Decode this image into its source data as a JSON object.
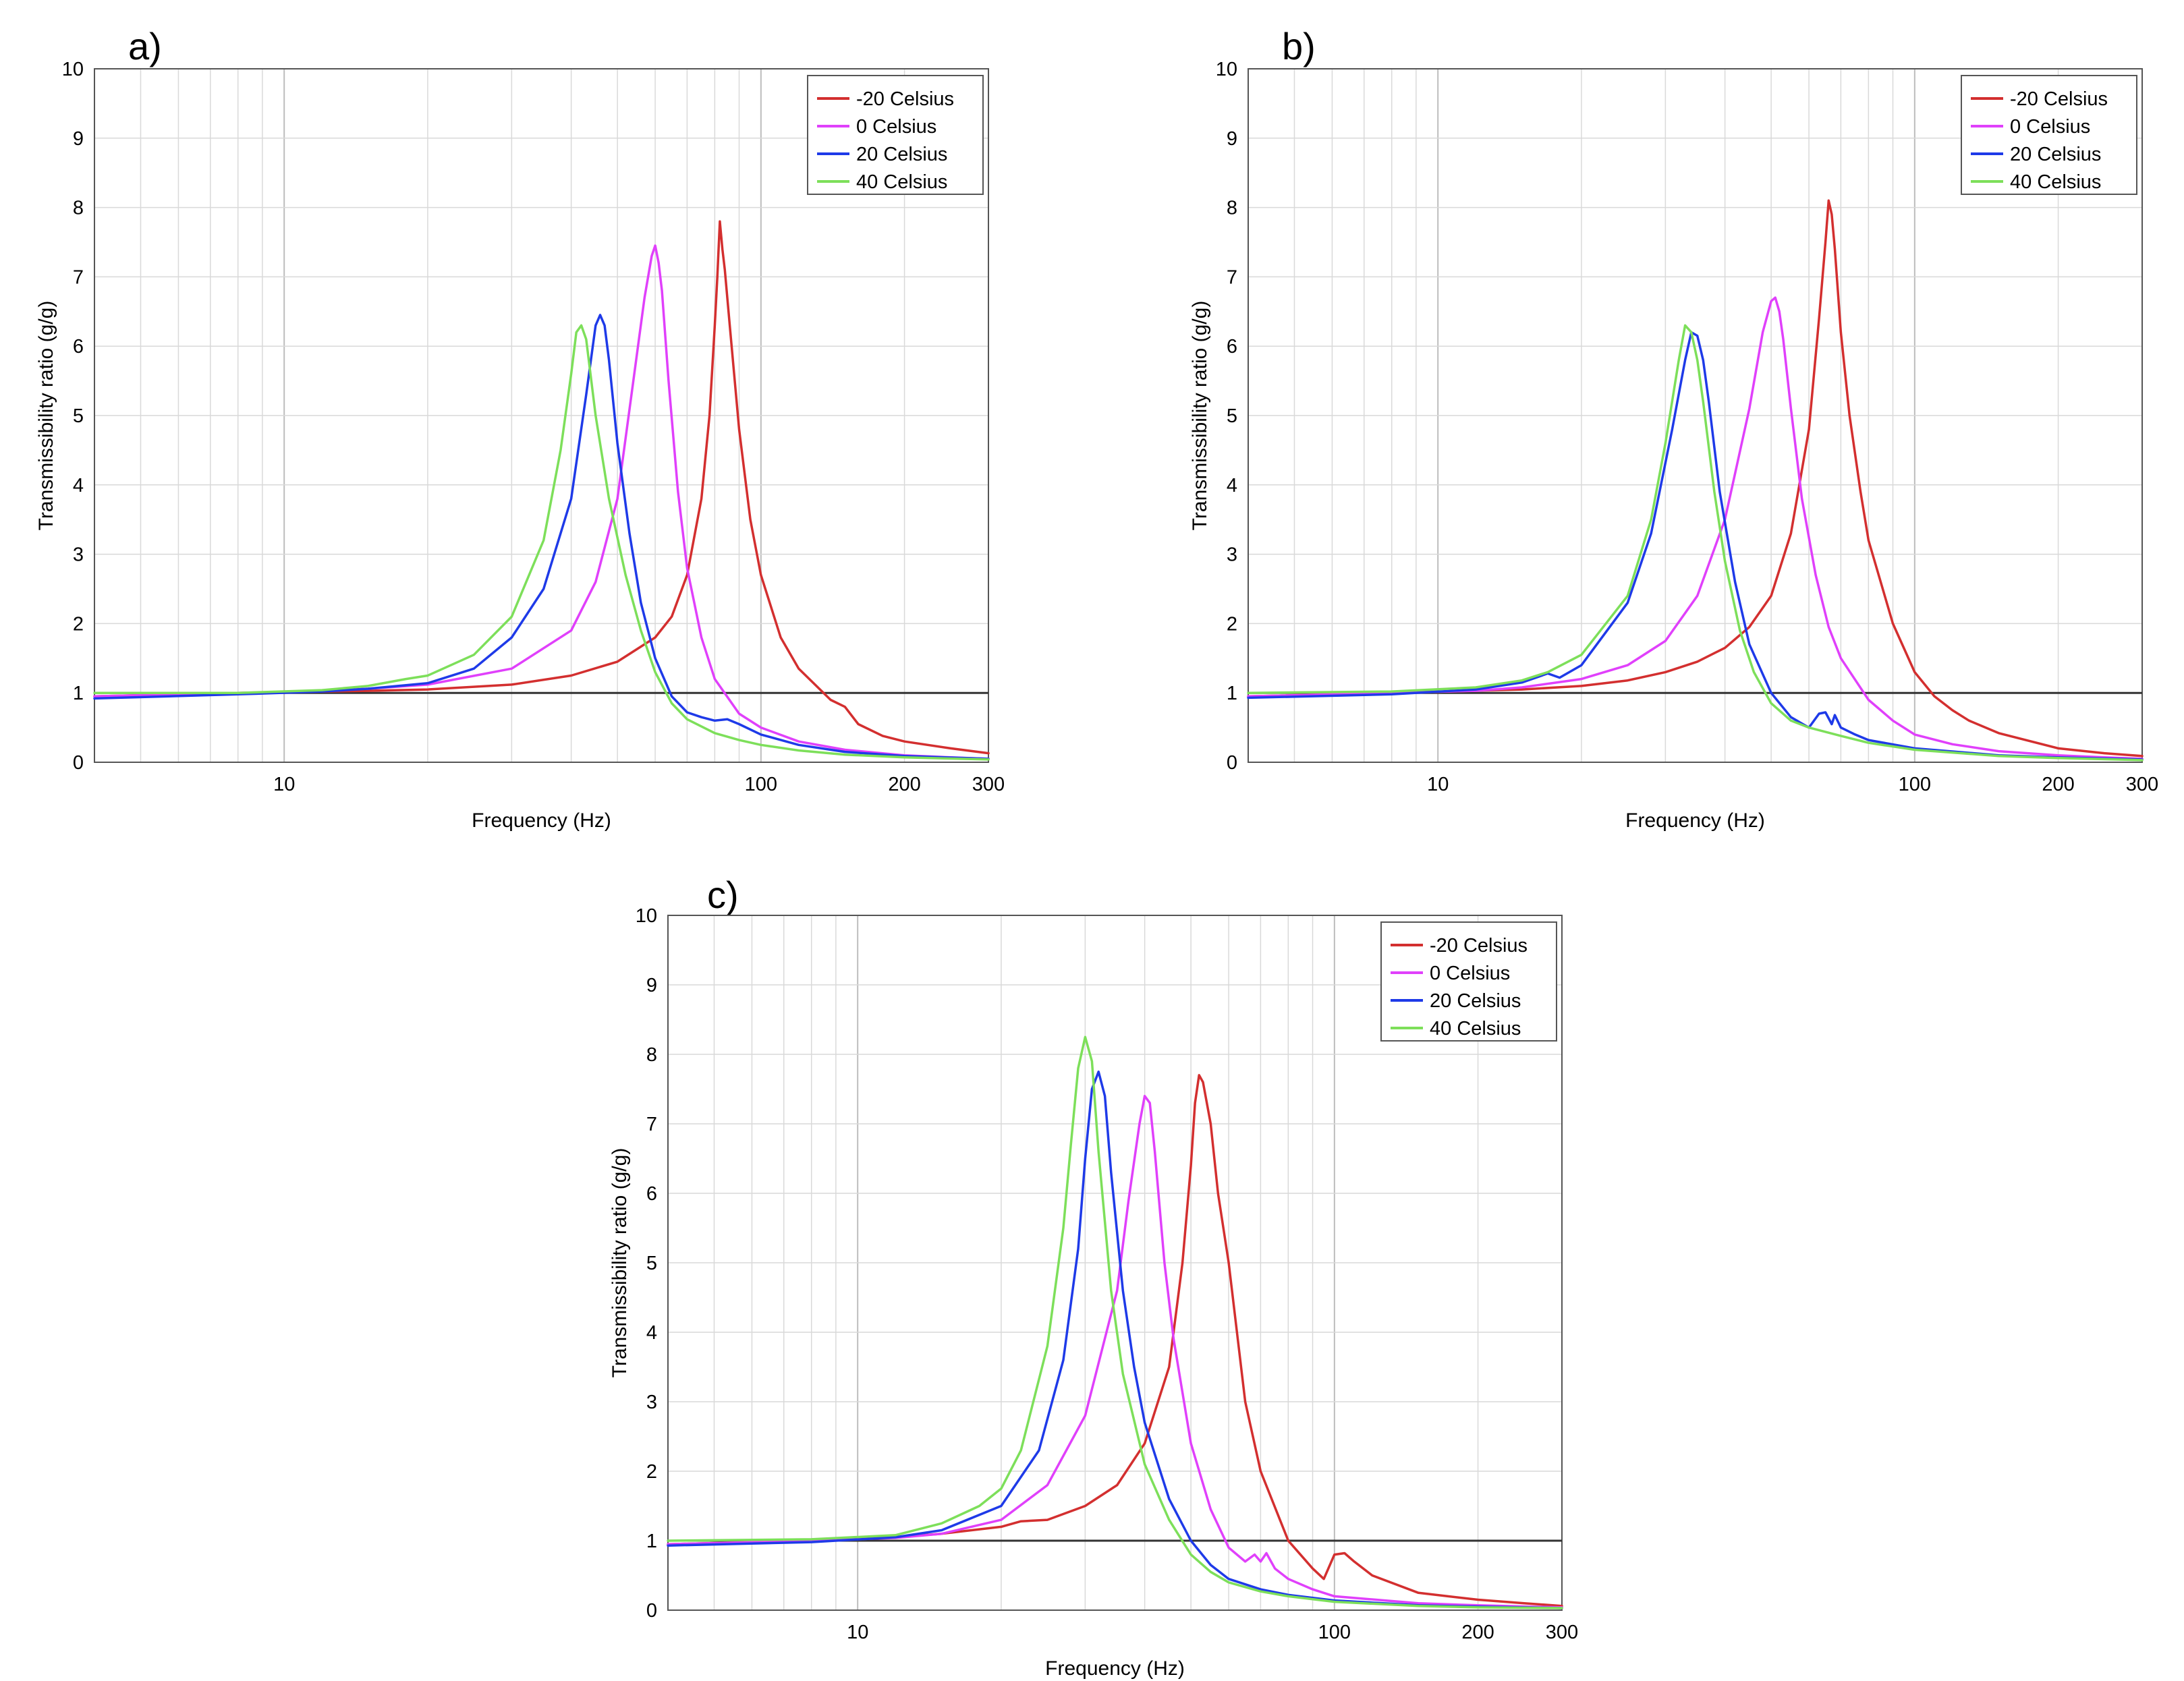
{
  "chart_data": [
    {
      "panel_label": "a)",
      "type": "line",
      "xlabel": "Frequency (Hz)",
      "ylabel": "Transmissibility ratio (g/g)",
      "xscale": "log",
      "xlim": [
        4,
        300
      ],
      "ylim": [
        0,
        10
      ],
      "xticks": [
        10,
        100,
        200,
        300
      ],
      "xtick_labels": [
        "10",
        "100",
        "200",
        "300"
      ],
      "yticks": [
        0,
        1,
        2,
        3,
        4,
        5,
        6,
        7,
        8,
        9,
        10
      ],
      "ytick_labels": [
        "0",
        "1",
        "2",
        "3",
        "4",
        "5",
        "6",
        "7",
        "8",
        "9",
        "10"
      ],
      "grid": true,
      "legend_position": "top-right",
      "reference_line_y": 1,
      "series": [
        {
          "name": "-20 Celsius",
          "color": "#d32f2f",
          "x": [
            4,
            8,
            15,
            20,
            30,
            40,
            50,
            60,
            65,
            70,
            75,
            78,
            80,
            81,
            82,
            83,
            84,
            86,
            90,
            95,
            100,
            110,
            120,
            140,
            150,
            160,
            180,
            200,
            250,
            300
          ],
          "y": [
            0.95,
            1.0,
            1.03,
            1.05,
            1.12,
            1.25,
            1.45,
            1.8,
            2.1,
            2.7,
            3.8,
            5.0,
            6.3,
            7.0,
            7.8,
            7.4,
            7.1,
            6.3,
            4.8,
            3.5,
            2.7,
            1.8,
            1.35,
            0.9,
            0.8,
            0.55,
            0.38,
            0.3,
            0.2,
            0.13
          ]
        },
        {
          "name": "0 Celsius",
          "color": "#e040fb",
          "x": [
            4,
            8,
            12,
            15,
            20,
            30,
            40,
            45,
            50,
            54,
            57,
            59,
            60,
            61,
            62,
            64,
            67,
            70,
            75,
            80,
            90,
            100,
            120,
            150,
            200,
            250,
            300
          ],
          "y": [
            0.95,
            1.0,
            1.03,
            1.06,
            1.12,
            1.35,
            1.9,
            2.6,
            3.8,
            5.5,
            6.7,
            7.3,
            7.45,
            7.2,
            6.8,
            5.5,
            3.9,
            2.8,
            1.8,
            1.2,
            0.7,
            0.5,
            0.3,
            0.18,
            0.1,
            0.07,
            0.05
          ]
        },
        {
          "name": "20 Celsius",
          "color": "#1e3ae8",
          "x": [
            4,
            8,
            12,
            15,
            20,
            25,
            30,
            35,
            40,
            43,
            45,
            46,
            47,
            48,
            50,
            53,
            56,
            60,
            65,
            70,
            75,
            80,
            85,
            90,
            100,
            120,
            150,
            200,
            300
          ],
          "y": [
            0.92,
            0.98,
            1.02,
            1.06,
            1.14,
            1.35,
            1.8,
            2.5,
            3.8,
            5.3,
            6.3,
            6.45,
            6.3,
            5.8,
            4.6,
            3.3,
            2.3,
            1.5,
            0.95,
            0.72,
            0.65,
            0.6,
            0.62,
            0.55,
            0.4,
            0.25,
            0.15,
            0.09,
            0.05
          ]
        },
        {
          "name": "40 Celsius",
          "color": "#7ddf5a",
          "x": [
            4,
            8,
            12,
            15,
            18,
            20,
            25,
            30,
            35,
            38,
            40,
            41,
            42,
            43,
            45,
            48,
            52,
            56,
            60,
            65,
            70,
            80,
            90,
            100,
            120,
            150,
            200,
            300
          ],
          "y": [
            1.0,
            1.0,
            1.04,
            1.1,
            1.2,
            1.25,
            1.55,
            2.1,
            3.2,
            4.5,
            5.6,
            6.2,
            6.3,
            6.1,
            5.0,
            3.8,
            2.7,
            1.9,
            1.3,
            0.85,
            0.62,
            0.42,
            0.32,
            0.25,
            0.17,
            0.11,
            0.07,
            0.04
          ]
        }
      ]
    },
    {
      "panel_label": "b)",
      "type": "line",
      "xlabel": "Frequency (Hz)",
      "ylabel": "Transmissibility ratio (g/g)",
      "xscale": "log",
      "xlim": [
        4,
        300
      ],
      "ylim": [
        0,
        10
      ],
      "xticks": [
        10,
        100,
        200,
        300
      ],
      "xtick_labels": [
        "10",
        "100",
        "200",
        "300"
      ],
      "yticks": [
        0,
        1,
        2,
        3,
        4,
        5,
        6,
        7,
        8,
        9,
        10
      ],
      "ytick_labels": [
        "0",
        "1",
        "2",
        "3",
        "4",
        "5",
        "6",
        "7",
        "8",
        "9",
        "10"
      ],
      "grid": true,
      "legend_position": "top-right",
      "reference_line_y": 1,
      "series": [
        {
          "name": "-20 Celsius",
          "color": "#d32f2f",
          "x": [
            4,
            8,
            15,
            20,
            25,
            30,
            35,
            40,
            45,
            50,
            55,
            60,
            63,
            65,
            66,
            67,
            68,
            70,
            73,
            77,
            80,
            90,
            100,
            110,
            120,
            130,
            150,
            200,
            250,
            300
          ],
          "y": [
            0.95,
            1.0,
            1.05,
            1.1,
            1.18,
            1.3,
            1.45,
            1.65,
            1.95,
            2.4,
            3.3,
            4.8,
            6.4,
            7.5,
            8.1,
            7.9,
            7.4,
            6.2,
            5.0,
            3.9,
            3.2,
            2.0,
            1.3,
            0.95,
            0.75,
            0.6,
            0.42,
            0.2,
            0.13,
            0.09
          ]
        },
        {
          "name": "0 Celsius",
          "color": "#e040fb",
          "x": [
            4,
            8,
            12,
            15,
            20,
            25,
            30,
            35,
            40,
            45,
            48,
            50,
            51,
            52,
            53,
            55,
            58,
            62,
            66,
            70,
            80,
            90,
            100,
            120,
            150,
            200,
            250,
            300
          ],
          "y": [
            0.95,
            1.0,
            1.03,
            1.08,
            1.2,
            1.4,
            1.75,
            2.4,
            3.5,
            5.1,
            6.2,
            6.65,
            6.7,
            6.5,
            6.1,
            5.1,
            3.8,
            2.7,
            1.95,
            1.5,
            0.9,
            0.6,
            0.4,
            0.26,
            0.16,
            0.1,
            0.07,
            0.05
          ]
        },
        {
          "name": "20 Celsius",
          "color": "#1e3ae8",
          "x": [
            4,
            8,
            12,
            15,
            17,
            18,
            20,
            25,
            28,
            31,
            33,
            34,
            35,
            36,
            37,
            39,
            42,
            45,
            50,
            55,
            60,
            63,
            65,
            67,
            68,
            70,
            75,
            80,
            100,
            150,
            200,
            300
          ],
          "y": [
            0.93,
            0.98,
            1.05,
            1.15,
            1.28,
            1.22,
            1.4,
            2.3,
            3.3,
            4.8,
            5.8,
            6.2,
            6.15,
            5.8,
            5.2,
            3.9,
            2.6,
            1.7,
            1.0,
            0.65,
            0.5,
            0.7,
            0.72,
            0.55,
            0.68,
            0.5,
            0.4,
            0.32,
            0.2,
            0.1,
            0.07,
            0.04
          ]
        },
        {
          "name": "40 Celsius",
          "color": "#7ddf5a",
          "x": [
            4,
            8,
            12,
            15,
            17,
            20,
            25,
            28,
            30,
            32,
            33,
            34,
            35,
            36,
            38,
            40,
            43,
            46,
            50,
            55,
            60,
            70,
            80,
            100,
            150,
            200,
            300
          ],
          "y": [
            1.0,
            1.02,
            1.08,
            1.18,
            1.3,
            1.55,
            2.4,
            3.5,
            4.6,
            5.8,
            6.3,
            6.2,
            5.8,
            5.2,
            3.9,
            2.9,
            1.9,
            1.3,
            0.85,
            0.6,
            0.5,
            0.38,
            0.28,
            0.18,
            0.09,
            0.06,
            0.03
          ]
        }
      ]
    },
    {
      "panel_label": "c)",
      "type": "line",
      "xlabel": "Frequency (Hz)",
      "ylabel": "Transmissibility ratio (g/g)",
      "xscale": "log",
      "xlim": [
        4,
        300
      ],
      "ylim": [
        0,
        10
      ],
      "xticks": [
        10,
        100,
        200,
        300
      ],
      "xtick_labels": [
        "10",
        "100",
        "200",
        "300"
      ],
      "yticks": [
        0,
        1,
        2,
        3,
        4,
        5,
        6,
        7,
        8,
        9,
        10
      ],
      "ytick_labels": [
        "0",
        "1",
        "2",
        "3",
        "4",
        "5",
        "6",
        "7",
        "8",
        "9",
        "10"
      ],
      "grid": true,
      "legend_position": "top-right",
      "reference_line_y": 1,
      "series": [
        {
          "name": "-20 Celsius",
          "color": "#d32f2f",
          "x": [
            4,
            8,
            12,
            15,
            20,
            22,
            25,
            30,
            35,
            40,
            45,
            48,
            50,
            51,
            52,
            53,
            55,
            57,
            60,
            65,
            70,
            80,
            90,
            95,
            100,
            105,
            110,
            120,
            150,
            200,
            250,
            300
          ],
          "y": [
            0.95,
            1.0,
            1.05,
            1.1,
            1.2,
            1.28,
            1.3,
            1.5,
            1.8,
            2.4,
            3.5,
            5.0,
            6.4,
            7.3,
            7.7,
            7.6,
            7.0,
            6.0,
            5.0,
            3.0,
            2.0,
            1.0,
            0.6,
            0.45,
            0.8,
            0.82,
            0.7,
            0.5,
            0.25,
            0.15,
            0.1,
            0.06
          ]
        },
        {
          "name": "0 Celsius",
          "color": "#e040fb",
          "x": [
            4,
            8,
            12,
            15,
            20,
            25,
            30,
            35,
            37,
            39,
            40,
            41,
            42,
            44,
            46,
            50,
            55,
            60,
            65,
            68,
            70,
            72,
            75,
            80,
            90,
            100,
            150,
            200,
            300
          ],
          "y": [
            0.95,
            1.0,
            1.04,
            1.1,
            1.3,
            1.8,
            2.8,
            4.6,
            5.9,
            7.0,
            7.4,
            7.3,
            6.6,
            5.0,
            3.9,
            2.4,
            1.45,
            0.9,
            0.7,
            0.8,
            0.7,
            0.82,
            0.6,
            0.45,
            0.3,
            0.2,
            0.1,
            0.07,
            0.04
          ]
        },
        {
          "name": "20 Celsius",
          "color": "#1e3ae8",
          "x": [
            4,
            8,
            12,
            15,
            20,
            24,
            27,
            29,
            30,
            31,
            32,
            33,
            34,
            36,
            38,
            40,
            45,
            50,
            55,
            60,
            70,
            80,
            100,
            150,
            200,
            300
          ],
          "y": [
            0.93,
            0.98,
            1.05,
            1.15,
            1.5,
            2.3,
            3.6,
            5.2,
            6.5,
            7.5,
            7.75,
            7.4,
            6.3,
            4.6,
            3.5,
            2.7,
            1.6,
            1.0,
            0.65,
            0.45,
            0.3,
            0.22,
            0.14,
            0.07,
            0.05,
            0.03
          ]
        },
        {
          "name": "40 Celsius",
          "color": "#7ddf5a",
          "x": [
            4,
            8,
            12,
            15,
            18,
            20,
            22,
            25,
            27,
            28,
            29,
            30,
            31,
            32,
            34,
            36,
            40,
            45,
            50,
            55,
            60,
            70,
            80,
            100,
            150,
            200,
            300
          ],
          "y": [
            1.0,
            1.02,
            1.08,
            1.25,
            1.5,
            1.75,
            2.3,
            3.8,
            5.5,
            6.7,
            7.8,
            8.25,
            7.9,
            6.6,
            4.6,
            3.4,
            2.1,
            1.3,
            0.8,
            0.55,
            0.4,
            0.27,
            0.2,
            0.12,
            0.06,
            0.04,
            0.03
          ]
        }
      ]
    }
  ]
}
